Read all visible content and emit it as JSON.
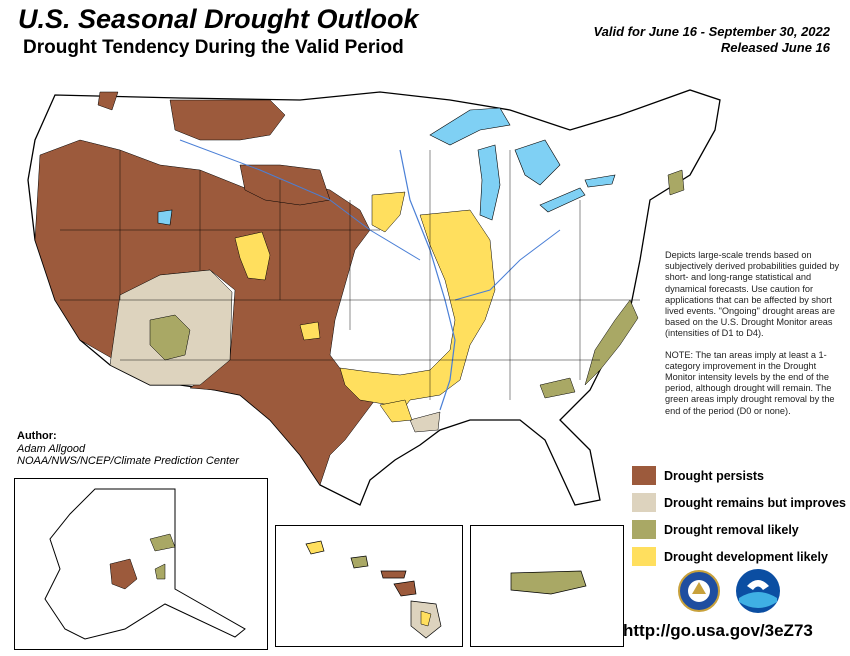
{
  "header": {
    "title": "U.S. Seasonal Drought Outlook",
    "subtitle": "Drought Tendency During the Valid Period",
    "valid_line": "Valid for June 16 - September 30, 2022",
    "released_line": "Released June 16"
  },
  "notes": {
    "description": "Depicts large-scale trends based on subjectively derived probabilities guided by short- and long-range statistical and dynamical forecasts. Use caution for applications that can be affected by short lived events. \"Ongoing\" drought areas are based on the U.S. Drought Monitor areas (intensities of D1 to D4).",
    "note": "NOTE: The tan areas imply at least a 1-category improvement in the Drought Monitor intensity levels by the end of the period, although drought will remain. The green areas imply drought removal by the end of the period (D0 or none)."
  },
  "author": {
    "heading": "Author:",
    "name": "Adam Allgood",
    "org": "NOAA/NWS/NCEP/Climate Prediction Center"
  },
  "legend": [
    {
      "label": "Drought persists",
      "color": "#9C5A3C"
    },
    {
      "label": "Drought remains but improves",
      "color": "#DDD3BE"
    },
    {
      "label": "Drought removal likely",
      "color": "#A9A865"
    },
    {
      "label": "Drought development likely",
      "color": "#FFDF5E"
    }
  ],
  "colors": {
    "water": "#7FD0F4",
    "persists": "#9C5A3C",
    "improves": "#DDD3BE",
    "removal": "#A9A865",
    "development": "#FFDF5E",
    "river": "#4A7FD6"
  },
  "footer": {
    "url": "http://go.usa.gov/3eZ73"
  },
  "icons": [
    "doc-seal-icon",
    "noaa-logo-icon"
  ]
}
